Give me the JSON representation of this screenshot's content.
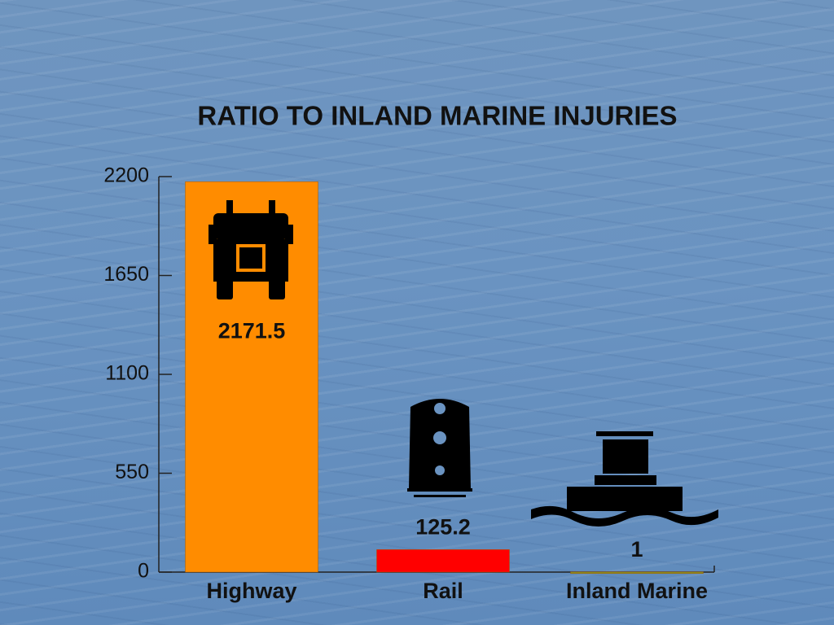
{
  "chart_data": {
    "type": "bar",
    "title": "RATIO TO INLAND MARINE INJURIES",
    "categories": [
      "Highway",
      "Rail",
      "Inland Marine"
    ],
    "values": [
      2171.5,
      125.2,
      1
    ],
    "colors": [
      "#ff8c00",
      "#ff0000",
      "#8c8c1e"
    ],
    "ylim": [
      0,
      2200
    ],
    "yticks": [
      0,
      550,
      1100,
      1650,
      2200
    ],
    "grid": false
  }
}
